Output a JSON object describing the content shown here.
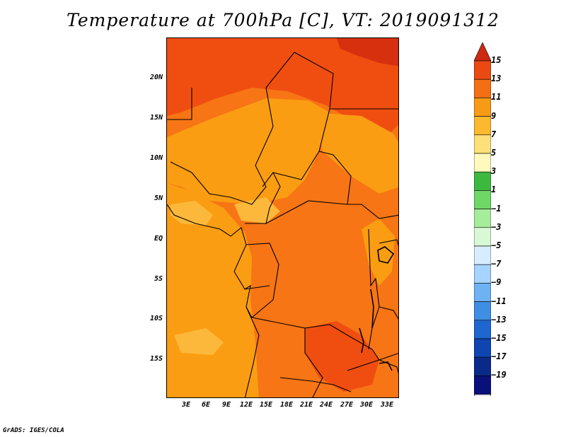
{
  "title": "Temperature at 700hPa [C], VT: 2019091312",
  "credit": "GrADS: IGES/COLA",
  "map": {
    "variable": "Temperature at 700hPa",
    "units": "C",
    "valid_time": "2019091312",
    "lat_labels": [
      "20N",
      "15N",
      "10N",
      "5N",
      "EQ",
      "5S",
      "10S",
      "15S"
    ],
    "lon_labels": [
      "3E",
      "6E",
      "9E",
      "12E",
      "15E",
      "18E",
      "21E",
      "24E",
      "27E",
      "30E",
      "33E"
    ]
  },
  "colorbar": {
    "labels": [
      "15",
      "13",
      "11",
      "9",
      "7",
      "5",
      "3",
      "1",
      "−1",
      "−3",
      "−5",
      "−7",
      "−9",
      "−11",
      "−13",
      "−15",
      "−17",
      "−19"
    ],
    "colors": [
      "#cd2a12",
      "#ea4a12",
      "#f26f14",
      "#f79a16",
      "#fbb930",
      "#fee07a",
      "#fff9bd",
      "#3db83f",
      "#6fd766",
      "#a5ec9b",
      "#d9f8d6",
      "#d8ecff",
      "#a6d3ff",
      "#6eb2f4",
      "#3f8ee3",
      "#1f66d0",
      "#0f45b0",
      "#0a2a8a",
      "#0a107a",
      "#dcdcf5"
    ]
  },
  "palette": {
    "t15": "#d6300f",
    "t13": "#f04e10",
    "t11": "#f77515",
    "t9": "#fb9d12",
    "t7": "#fcb83a"
  }
}
